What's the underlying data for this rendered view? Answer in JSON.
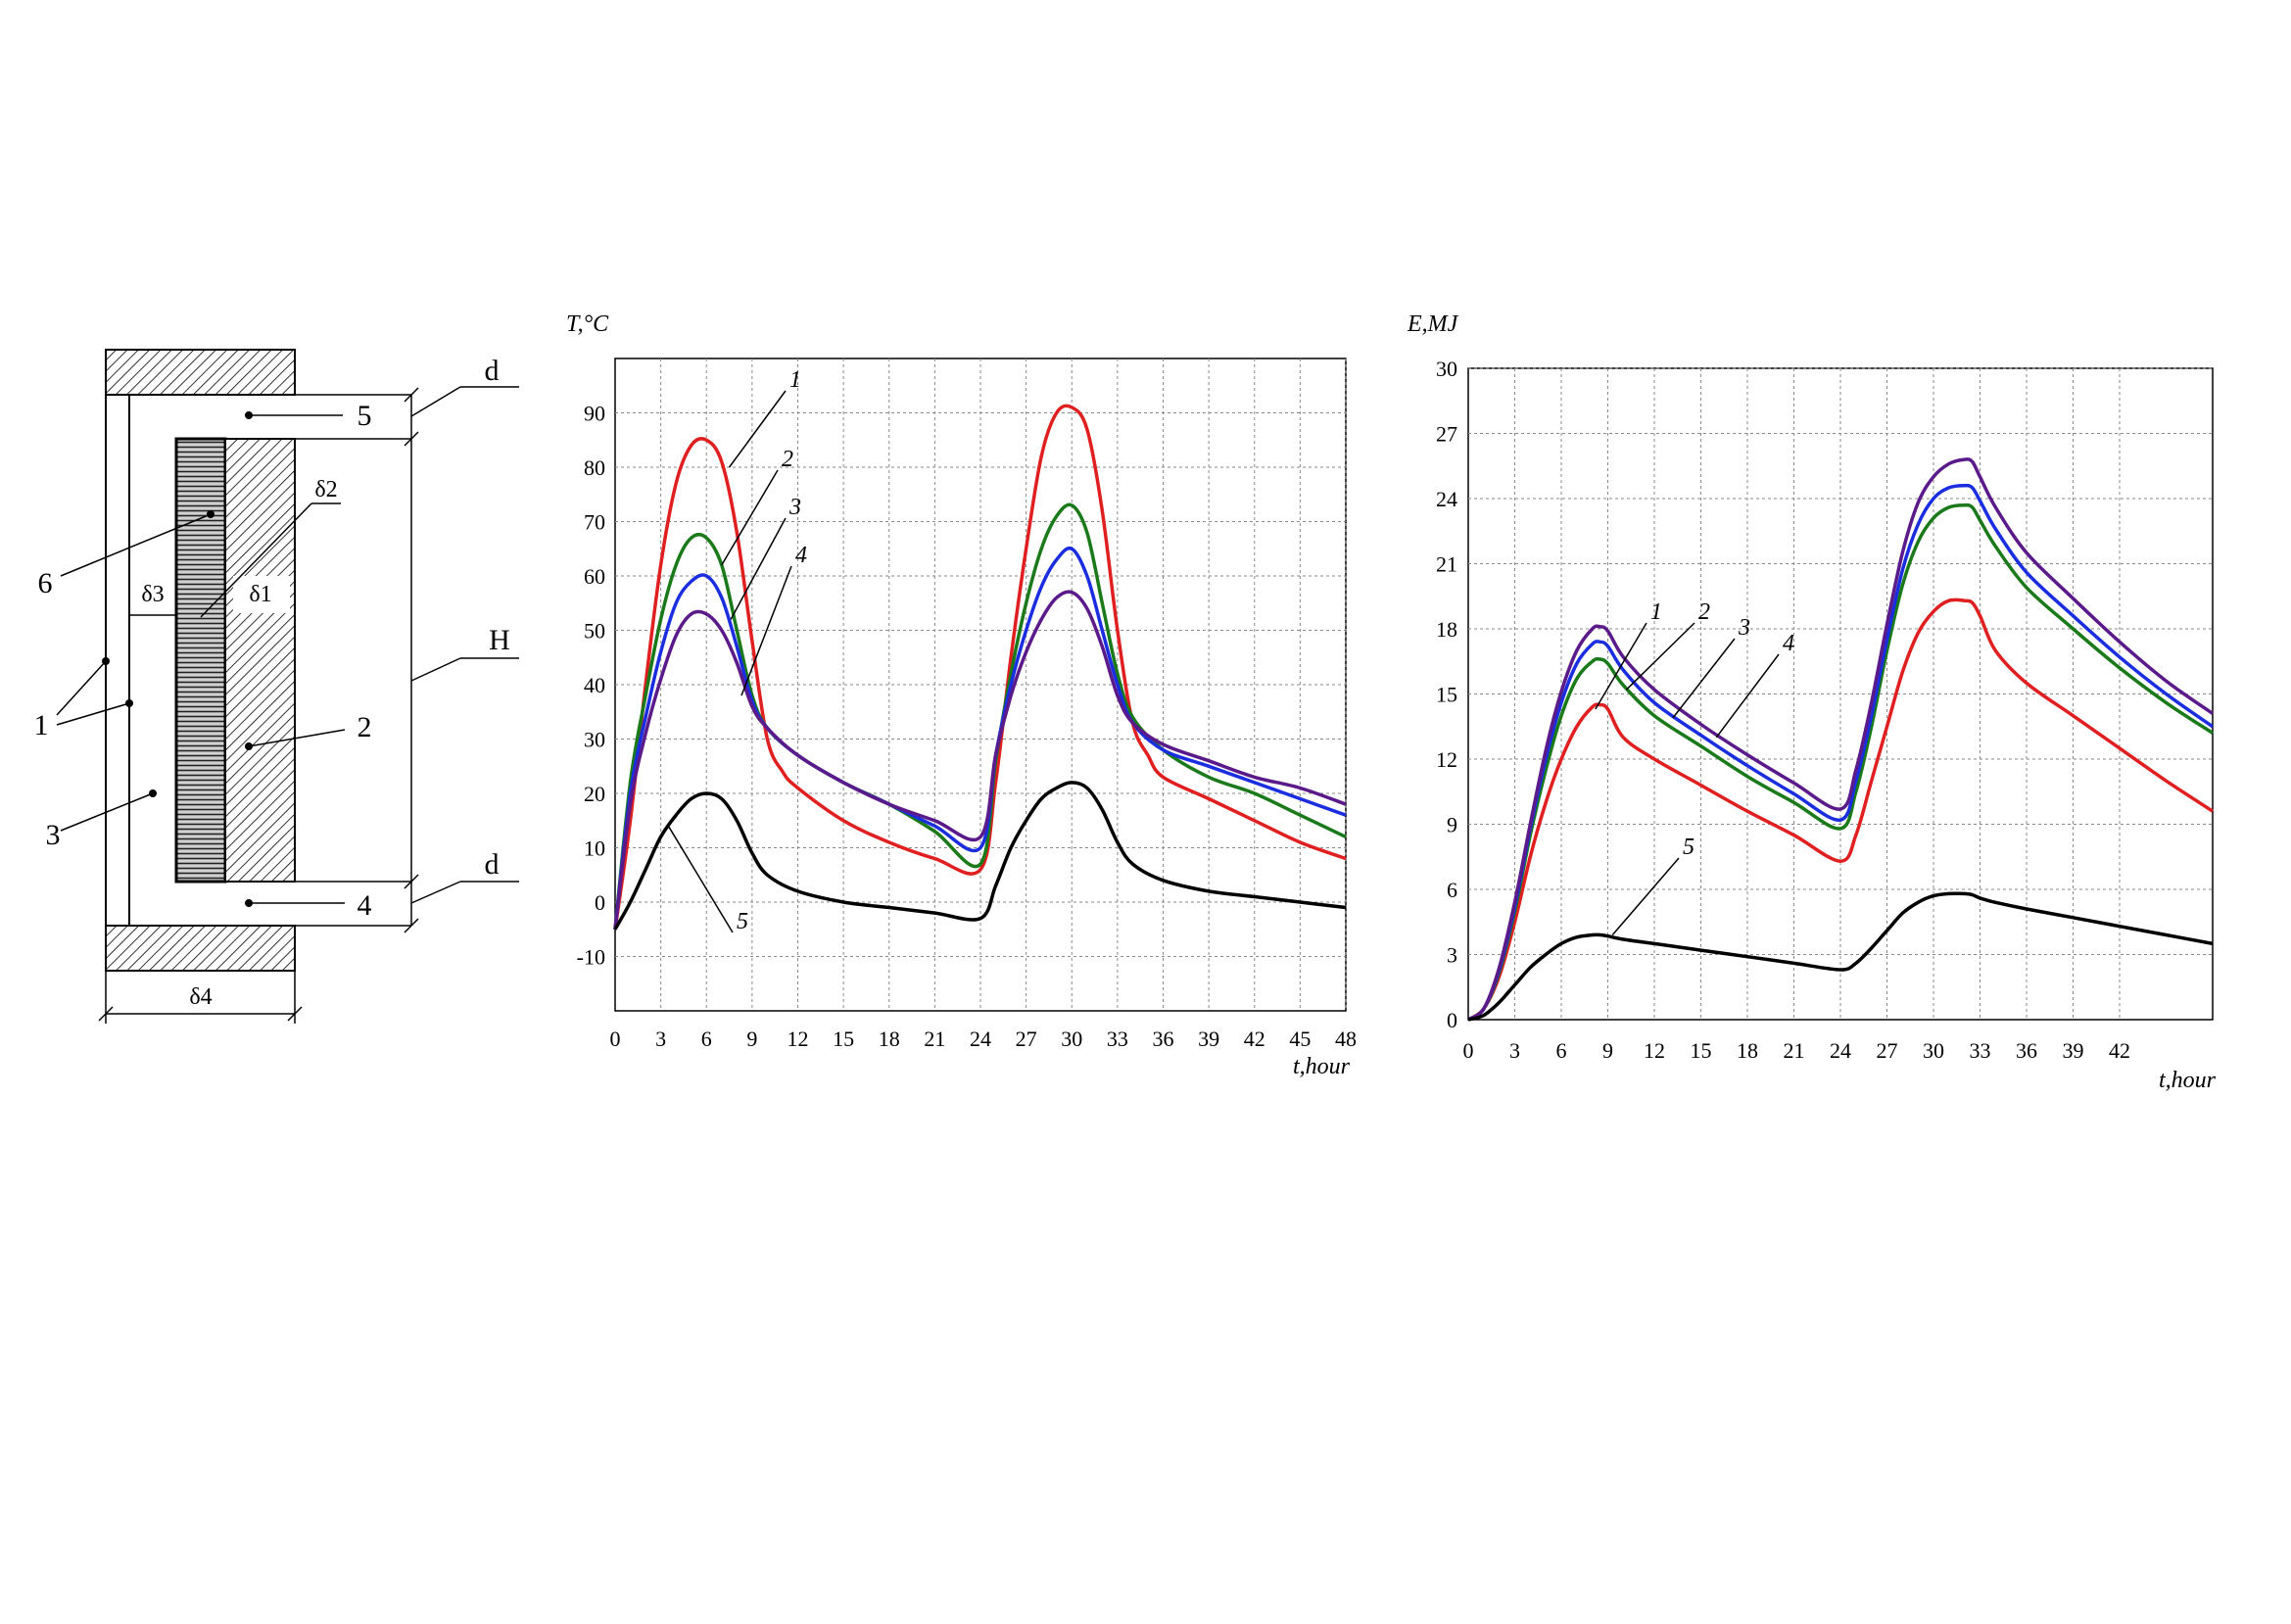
{
  "diagram": {
    "labels": {
      "d_top": "d",
      "d_bottom": "d",
      "H": "H",
      "n1": "1",
      "n2": "2",
      "n3": "3",
      "n4": "4",
      "n5": "5",
      "n6": "6",
      "delta1": "δ1",
      "delta2": "δ2",
      "delta3": "δ3",
      "delta4": "δ4"
    }
  },
  "chart_data": [
    {
      "type": "line",
      "ylabel": "T,°C",
      "xlabel": "t,hour",
      "xlim": [
        0,
        48
      ],
      "ylim": [
        -20,
        100
      ],
      "xticks": [
        0,
        3,
        6,
        9,
        12,
        15,
        18,
        21,
        24,
        27,
        30,
        33,
        36,
        39,
        42,
        45,
        48
      ],
      "yticks": [
        -10,
        0,
        10,
        20,
        30,
        40,
        50,
        60,
        70,
        80,
        90
      ],
      "grid": true,
      "series": [
        {
          "name": "1",
          "color": "#e02020",
          "x": [
            0,
            1,
            2,
            3,
            4,
            5,
            6,
            7,
            8,
            9,
            10,
            11,
            12,
            15,
            18,
            21,
            24,
            25,
            26,
            27,
            28,
            29,
            30,
            31,
            32,
            33,
            34,
            35,
            36,
            39,
            42,
            45,
            48
          ],
          "y": [
            -5,
            15,
            40,
            62,
            77,
            84,
            85,
            81,
            68,
            48,
            30,
            24,
            21,
            15,
            11,
            8,
            6,
            22,
            45,
            65,
            82,
            90,
            91,
            87,
            72,
            50,
            33,
            27,
            23,
            19,
            15,
            11,
            8
          ]
        },
        {
          "name": "2",
          "color": "#1a7a1a",
          "x": [
            0,
            1,
            2,
            3,
            4,
            5,
            6,
            7,
            8,
            9,
            10,
            12,
            15,
            18,
            21,
            24,
            25,
            26,
            27,
            28,
            29,
            30,
            31,
            32,
            33,
            34,
            36,
            39,
            42,
            45,
            48
          ],
          "y": [
            -5,
            22,
            38,
            52,
            62,
            67,
            67,
            62,
            50,
            38,
            32,
            27,
            22,
            18,
            13,
            7,
            26,
            42,
            55,
            65,
            71,
            73,
            68,
            55,
            42,
            34,
            28,
            23,
            20,
            16,
            12
          ]
        },
        {
          "name": "3",
          "color": "#1a2ee0",
          "x": [
            0,
            1,
            2,
            3,
            4,
            5,
            6,
            7,
            8,
            9,
            10,
            12,
            15,
            18,
            21,
            24,
            25,
            26,
            27,
            28,
            29,
            30,
            31,
            32,
            33,
            34,
            36,
            39,
            42,
            45,
            48
          ],
          "y": [
            -5,
            20,
            34,
            46,
            55,
            59,
            60,
            56,
            47,
            37,
            32,
            27,
            22,
            18,
            14,
            10,
            27,
            40,
            50,
            58,
            63,
            65,
            60,
            50,
            40,
            33,
            28,
            25,
            22,
            19,
            16
          ]
        },
        {
          "name": "4",
          "color": "#5b1a8a",
          "x": [
            0,
            1,
            2,
            3,
            4,
            5,
            6,
            7,
            8,
            9,
            10,
            12,
            15,
            18,
            21,
            24,
            25,
            26,
            27,
            28,
            29,
            30,
            31,
            32,
            33,
            34,
            36,
            39,
            42,
            45,
            48
          ],
          "y": [
            -5,
            18,
            31,
            41,
            49,
            53,
            53,
            50,
            44,
            36,
            32,
            27,
            22,
            18,
            15,
            12,
            27,
            38,
            46,
            52,
            56,
            57,
            54,
            47,
            38,
            33,
            29,
            26,
            23,
            21,
            18
          ]
        },
        {
          "name": "5",
          "color": "#000000",
          "x": [
            0,
            1,
            2,
            3,
            4,
            5,
            6,
            7,
            8,
            9,
            10,
            12,
            15,
            18,
            21,
            24,
            25,
            26,
            27,
            28,
            29,
            30,
            31,
            32,
            33,
            34,
            36,
            39,
            42,
            45,
            48
          ],
          "y": [
            -5,
            0,
            6,
            12,
            16,
            19,
            20,
            19,
            15,
            9,
            5,
            2,
            0,
            -1,
            -2,
            -3,
            3,
            10,
            15,
            19,
            21,
            22,
            21,
            17,
            11,
            7,
            4,
            2,
            1,
            0,
            -1
          ]
        }
      ]
    },
    {
      "type": "line",
      "ylabel": "E,MJ",
      "xlabel": "t,hour",
      "xlim": [
        0,
        48
      ],
      "ylim": [
        0,
        30
      ],
      "xticks": [
        0,
        3,
        6,
        9,
        12,
        15,
        18,
        21,
        24,
        27,
        30,
        33,
        36,
        39,
        42
      ],
      "yticks": [
        0,
        3,
        6,
        9,
        12,
        15,
        18,
        21,
        24,
        27,
        30
      ],
      "grid": true,
      "series": [
        {
          "name": "1",
          "color": "#e02020",
          "x": [
            0,
            1,
            2,
            3,
            4,
            5,
            6,
            7,
            8,
            8.5,
            9,
            10,
            12,
            15,
            18,
            21,
            24,
            25,
            26,
            27,
            28,
            29,
            30,
            31,
            32,
            32.5,
            33,
            34,
            36,
            39,
            42,
            45,
            48
          ],
          "y": [
            0,
            0.5,
            2,
            4.5,
            7.5,
            10,
            12,
            13.5,
            14.4,
            14.5,
            14.3,
            13,
            12,
            10.8,
            9.6,
            8.5,
            7.3,
            8.5,
            11,
            13.5,
            16,
            17.8,
            18.8,
            19.3,
            19.3,
            19.2,
            18.6,
            17,
            15.5,
            14,
            12.5,
            11,
            9.6
          ]
        },
        {
          "name": "2",
          "color": "#1a7a1a",
          "x": [
            0,
            1,
            2,
            3,
            4,
            5,
            6,
            7,
            8,
            8.5,
            9,
            10,
            12,
            15,
            18,
            21,
            24,
            25,
            26,
            27,
            28,
            29,
            30,
            31,
            32,
            32.5,
            33,
            34,
            36,
            39,
            42,
            45,
            48
          ],
          "y": [
            0,
            0.5,
            2.2,
            5,
            8.5,
            11.5,
            14,
            15.7,
            16.5,
            16.6,
            16.4,
            15.4,
            14,
            12.6,
            11.2,
            10,
            8.8,
            10.5,
            13.5,
            17,
            20,
            22,
            23.1,
            23.6,
            23.7,
            23.6,
            23,
            21.8,
            19.9,
            18,
            16.2,
            14.6,
            13.2
          ]
        },
        {
          "name": "3",
          "color": "#1a2ee0",
          "x": [
            0,
            1,
            2,
            3,
            4,
            5,
            6,
            7,
            8,
            8.5,
            9,
            10,
            12,
            15,
            18,
            21,
            24,
            25,
            26,
            27,
            28,
            29,
            30,
            31,
            32,
            32.5,
            33,
            34,
            36,
            39,
            42,
            45,
            48
          ],
          "y": [
            0,
            0.5,
            2.3,
            5.2,
            8.8,
            12,
            14.6,
            16.4,
            17.3,
            17.4,
            17.2,
            16.1,
            14.6,
            13.1,
            11.7,
            10.4,
            9.2,
            11,
            14,
            17.5,
            20.7,
            22.8,
            24,
            24.5,
            24.6,
            24.5,
            23.9,
            22.6,
            20.6,
            18.6,
            16.7,
            15,
            13.5
          ]
        },
        {
          "name": "4",
          "color": "#5b1a8a",
          "x": [
            0,
            1,
            2,
            3,
            4,
            5,
            6,
            7,
            8,
            8.5,
            9,
            10,
            12,
            15,
            18,
            21,
            24,
            25,
            26,
            27,
            28,
            29,
            30,
            31,
            32,
            32.5,
            33,
            34,
            36,
            39,
            42,
            45,
            48
          ],
          "y": [
            0,
            0.5,
            2.4,
            5.4,
            9,
            12.4,
            15.1,
            17,
            18,
            18.1,
            17.9,
            16.7,
            15.2,
            13.6,
            12.2,
            10.9,
            9.7,
            11.5,
            14.6,
            18.2,
            21.5,
            23.8,
            25,
            25.6,
            25.8,
            25.7,
            25,
            23.6,
            21.5,
            19.4,
            17.4,
            15.6,
            14.1
          ]
        },
        {
          "name": "5",
          "color": "#000000",
          "x": [
            0,
            1,
            2,
            3,
            4,
            5,
            6,
            7,
            8,
            8.5,
            9,
            10,
            12,
            15,
            18,
            21,
            24,
            25,
            26,
            27,
            28,
            29,
            30,
            31,
            32,
            32.5,
            33,
            34,
            36,
            39,
            42,
            45,
            48
          ],
          "y": [
            0,
            0.2,
            0.8,
            1.6,
            2.4,
            3,
            3.5,
            3.8,
            3.9,
            3.9,
            3.85,
            3.7,
            3.5,
            3.2,
            2.9,
            2.6,
            2.3,
            2.6,
            3.3,
            4.1,
            4.9,
            5.4,
            5.7,
            5.8,
            5.8,
            5.75,
            5.6,
            5.4,
            5.1,
            4.7,
            4.3,
            3.9,
            3.5
          ]
        }
      ]
    }
  ]
}
